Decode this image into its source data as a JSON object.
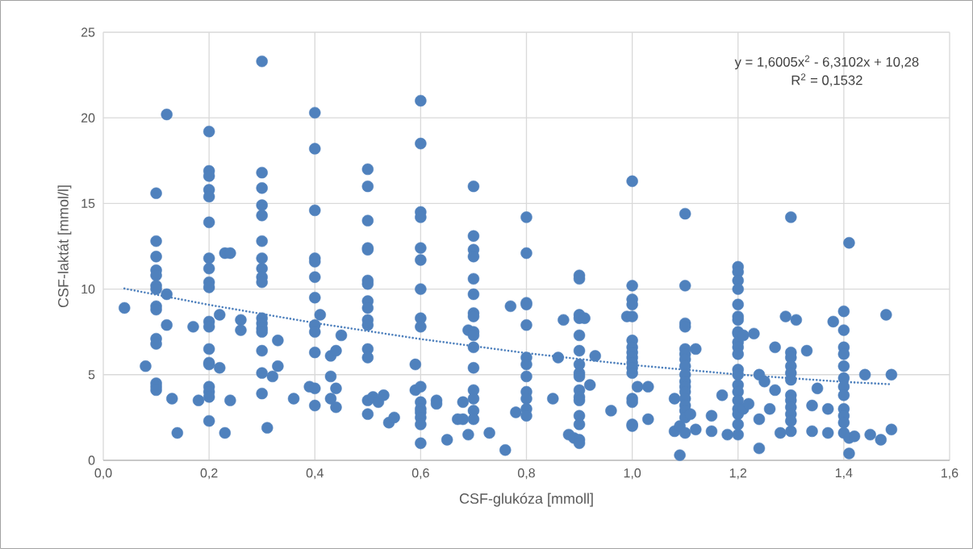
{
  "chart_data": {
    "type": "scatter",
    "xlabel": "CSF-glukóza [mmoll]",
    "ylabel": "CSF-laktát [mmol/l]",
    "annotations": [
      "y = 1,6005x$^{2}$ - 6,3102x + 10,28",
      "R$^{2}$ = 0,1532"
    ],
    "xlim": [
      0,
      1.6
    ],
    "ylim": [
      0,
      25
    ],
    "xticks": [
      {
        "value": 0,
        "label": "0,0"
      },
      {
        "value": 0.2,
        "label": "0,2"
      },
      {
        "value": 0.4,
        "label": "0,4"
      },
      {
        "value": 0.6,
        "label": "0,6"
      },
      {
        "value": 0.8,
        "label": "0,8"
      },
      {
        "value": 1.0,
        "label": "1,0"
      },
      {
        "value": 1.2,
        "label": "1,2"
      },
      {
        "value": 1.4,
        "label": "1,4"
      },
      {
        "value": 1.6,
        "label": "1,6"
      }
    ],
    "yticks": [
      0,
      5,
      10,
      15,
      20,
      25
    ],
    "grid": true,
    "marker": "circle",
    "series": [
      {
        "color": "#4f81bd",
        "x": [
          0.04,
          0.08,
          0.1,
          0.1,
          0.1,
          0.1,
          0.1,
          0.1,
          0.1,
          0.1,
          0.1,
          0.1,
          0.1,
          0.1,
          0.1,
          0.1,
          0.12,
          0.12,
          0.12,
          0.13,
          0.14,
          0.17,
          0.18,
          0.2,
          0.2,
          0.2,
          0.2,
          0.2,
          0.2,
          0.2,
          0.2,
          0.2,
          0.2,
          0.2,
          0.2,
          0.2,
          0.2,
          0.2,
          0.2,
          0.2,
          0.2,
          0.2,
          0.22,
          0.22,
          0.23,
          0.23,
          0.24,
          0.24,
          0.26,
          0.26,
          0.3,
          0.3,
          0.3,
          0.3,
          0.3,
          0.3,
          0.3,
          0.3,
          0.3,
          0.3,
          0.3,
          0.3,
          0.3,
          0.3,
          0.3,
          0.3,
          0.3,
          0.31,
          0.32,
          0.33,
          0.33,
          0.36,
          0.39,
          0.4,
          0.4,
          0.4,
          0.4,
          0.4,
          0.4,
          0.4,
          0.4,
          0.4,
          0.4,
          0.4,
          0.4,
          0.41,
          0.43,
          0.43,
          0.43,
          0.44,
          0.44,
          0.44,
          0.45,
          0.5,
          0.5,
          0.5,
          0.5,
          0.5,
          0.5,
          0.5,
          0.5,
          0.5,
          0.5,
          0.5,
          0.5,
          0.5,
          0.5,
          0.5,
          0.51,
          0.52,
          0.53,
          0.54,
          0.55,
          0.59,
          0.59,
          0.6,
          0.6,
          0.6,
          0.6,
          0.6,
          0.6,
          0.6,
          0.6,
          0.6,
          0.6,
          0.6,
          0.6,
          0.6,
          0.6,
          0.6,
          0.6,
          0.63,
          0.63,
          0.65,
          0.67,
          0.68,
          0.68,
          0.69,
          0.69,
          0.7,
          0.7,
          0.7,
          0.7,
          0.7,
          0.7,
          0.7,
          0.7,
          0.7,
          0.7,
          0.7,
          0.7,
          0.7,
          0.7,
          0.7,
          0.7,
          0.73,
          0.76,
          0.77,
          0.78,
          0.8,
          0.8,
          0.8,
          0.8,
          0.8,
          0.8,
          0.8,
          0.8,
          0.8,
          0.8,
          0.8,
          0.8,
          0.85,
          0.86,
          0.87,
          0.88,
          0.89,
          0.9,
          0.9,
          0.9,
          0.9,
          0.9,
          0.9,
          0.9,
          0.9,
          0.9,
          0.9,
          0.9,
          0.9,
          0.9,
          0.9,
          0.9,
          0.9,
          0.91,
          0.92,
          0.93,
          0.96,
          0.99,
          1.0,
          1.0,
          1.0,
          1.0,
          1.0,
          1.0,
          1.0,
          1.0,
          1.0,
          1.0,
          1.0,
          1.0,
          1.0,
          1.0,
          1.0,
          1.0,
          1.01,
          1.03,
          1.03,
          1.08,
          1.08,
          1.09,
          1.09,
          1.1,
          1.1,
          1.1,
          1.1,
          1.1,
          1.1,
          1.1,
          1.1,
          1.1,
          1.1,
          1.1,
          1.1,
          1.1,
          1.1,
          1.1,
          1.1,
          1.1,
          1.11,
          1.12,
          1.12,
          1.15,
          1.15,
          1.17,
          1.18,
          1.2,
          1.2,
          1.2,
          1.2,
          1.2,
          1.2,
          1.2,
          1.2,
          1.2,
          1.2,
          1.2,
          1.2,
          1.2,
          1.2,
          1.2,
          1.2,
          1.2,
          1.2,
          1.2,
          1.2,
          1.2,
          1.21,
          1.21,
          1.22,
          1.23,
          1.24,
          1.24,
          1.24,
          1.25,
          1.26,
          1.27,
          1.27,
          1.28,
          1.29,
          1.3,
          1.3,
          1.3,
          1.3,
          1.3,
          1.3,
          1.3,
          1.3,
          1.3,
          1.3,
          1.3,
          1.3,
          1.31,
          1.33,
          1.34,
          1.34,
          1.35,
          1.37,
          1.37,
          1.38,
          1.4,
          1.4,
          1.4,
          1.4,
          1.4,
          1.4,
          1.4,
          1.4,
          1.4,
          1.4,
          1.4,
          1.4,
          1.41,
          1.41,
          1.41,
          1.42,
          1.44,
          1.45,
          1.47,
          1.48,
          1.49,
          1.49
        ],
        "values": [
          8.9,
          5.5,
          15.6,
          12.8,
          11.9,
          11.1,
          10.8,
          10.2,
          10.0,
          9.0,
          8.8,
          7.1,
          6.8,
          4.5,
          4.3,
          4.1,
          20.2,
          9.7,
          7.9,
          3.6,
          1.6,
          7.8,
          3.5,
          19.2,
          16.9,
          16.6,
          15.8,
          15.4,
          13.9,
          11.8,
          11.2,
          10.4,
          10.1,
          8.1,
          7.8,
          6.5,
          5.7,
          5.6,
          4.3,
          4.0,
          3.7,
          2.3,
          8.5,
          5.4,
          12.1,
          1.6,
          12.1,
          3.5,
          8.2,
          7.6,
          23.3,
          16.8,
          15.9,
          14.9,
          14.3,
          12.8,
          11.8,
          11.2,
          10.7,
          10.4,
          8.3,
          8.0,
          7.7,
          7.5,
          6.4,
          5.1,
          3.9,
          1.9,
          4.9,
          7.0,
          5.5,
          3.6,
          4.3,
          20.3,
          18.2,
          14.6,
          11.8,
          11.6,
          10.7,
          9.5,
          7.9,
          7.5,
          6.3,
          4.2,
          3.2,
          8.5,
          6.1,
          4.9,
          3.6,
          6.4,
          4.2,
          3.1,
          7.3,
          17.0,
          16.0,
          14.0,
          12.4,
          12.3,
          10.5,
          10.3,
          9.3,
          8.9,
          8.2,
          7.9,
          6.5,
          6.0,
          3.5,
          2.7,
          3.7,
          3.4,
          3.8,
          2.2,
          2.5,
          5.6,
          4.1,
          21.0,
          18.5,
          14.5,
          14.2,
          12.4,
          11.7,
          10.0,
          8.3,
          7.8,
          4.3,
          3.4,
          3.0,
          2.8,
          2.5,
          2.1,
          1.0,
          3.5,
          3.3,
          1.2,
          2.4,
          3.4,
          2.4,
          7.6,
          1.5,
          16.0,
          13.1,
          12.3,
          11.9,
          10.6,
          9.7,
          8.6,
          8.4,
          7.5,
          7.3,
          6.6,
          5.4,
          4.1,
          3.6,
          2.9,
          2.4,
          1.6,
          0.6,
          9.0,
          2.8,
          14.2,
          12.1,
          9.2,
          9.1,
          7.9,
          6.0,
          5.6,
          4.9,
          4.0,
          3.6,
          3.0,
          2.6,
          3.6,
          6.0,
          8.2,
          1.5,
          1.3,
          10.8,
          10.6,
          8.5,
          8.3,
          7.3,
          6.4,
          5.6,
          5.1,
          4.9,
          4.1,
          3.7,
          3.5,
          2.6,
          2.1,
          1.2,
          1.0,
          8.3,
          4.4,
          6.1,
          2.9,
          8.4,
          16.3,
          10.2,
          9.4,
          9.1,
          8.4,
          7.0,
          6.6,
          6.3,
          6.0,
          5.7,
          5.4,
          5.1,
          3.6,
          3.4,
          2.1,
          2.0,
          4.3,
          4.3,
          2.4,
          3.6,
          1.7,
          2.0,
          0.3,
          14.4,
          10.2,
          8.0,
          7.8,
          6.5,
          6.2,
          5.9,
          5.5,
          5.0,
          4.6,
          4.3,
          4.0,
          3.6,
          3.2,
          2.9,
          2.5,
          1.6,
          2.7,
          6.5,
          1.8,
          2.6,
          1.7,
          3.8,
          1.5,
          11.3,
          11.0,
          10.5,
          10.0,
          9.1,
          8.4,
          8.2,
          7.5,
          7.4,
          6.9,
          6.6,
          6.2,
          5.3,
          5.0,
          4.4,
          4.0,
          3.5,
          3.0,
          2.7,
          2.1,
          1.5,
          7.3,
          3.0,
          3.3,
          7.4,
          5.0,
          2.4,
          0.7,
          4.6,
          3.0,
          6.6,
          4.1,
          1.6,
          8.4,
          14.2,
          6.3,
          6.0,
          5.5,
          5.1,
          4.7,
          3.8,
          3.5,
          3.1,
          2.7,
          2.3,
          1.7,
          8.2,
          6.4,
          3.2,
          1.7,
          4.2,
          3.0,
          1.6,
          8.1,
          8.7,
          7.6,
          6.6,
          6.2,
          5.5,
          4.8,
          4.3,
          3.8,
          3.0,
          2.6,
          2.2,
          1.6,
          12.7,
          1.3,
          0.4,
          1.4,
          5.0,
          1.5,
          1.2,
          8.5,
          5.0,
          1.8
        ]
      },
      {
        "type": "line",
        "color": "#4f81bd",
        "line_style": "dotted",
        "marker": "none",
        "x": [
          0.04,
          0.2,
          0.4,
          0.6,
          0.8,
          1.0,
          1.2,
          1.4,
          1.49
        ],
        "values": [
          10.03,
          9.08,
          8.02,
          7.08,
          6.26,
          5.57,
          5.01,
          4.58,
          4.44
        ]
      }
    ]
  }
}
